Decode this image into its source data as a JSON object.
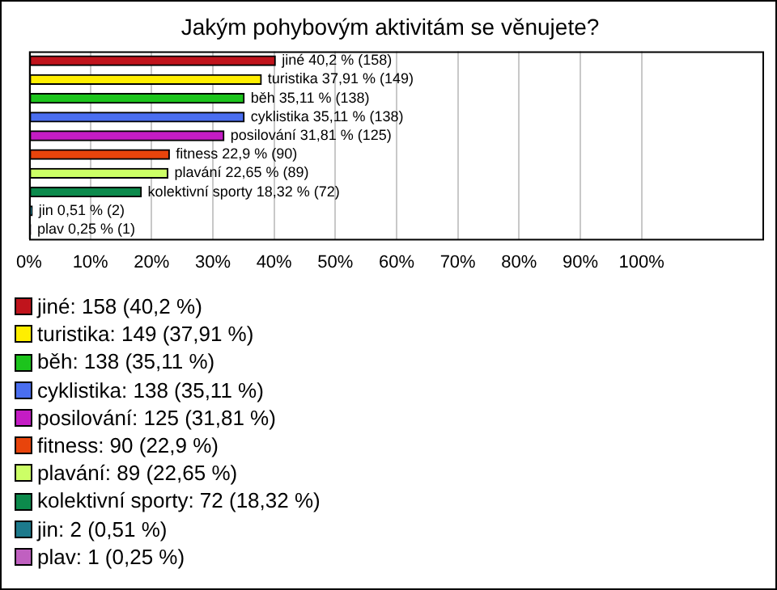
{
  "chart_data": {
    "type": "bar",
    "orientation": "horizontal",
    "title": "Jakým pohybovým aktivitám se věnujete?",
    "categories": [
      null,
      null,
      null,
      null,
      null,
      null,
      null,
      null,
      null,
      null
    ],
    "values": [
      40.2,
      37.91,
      35.11,
      35.11,
      31.81,
      22.9,
      22.65,
      18.32,
      0.51,
      0.25
    ],
    "colors": [
      "#c0141c",
      "#ffee00",
      "#1cc41c",
      "#4a6ef0",
      "#c41cc4",
      "#e8440c",
      "#ccff66",
      "#0c8a4c",
      "#1c7a8c",
      "#c060c0"
    ],
    "value_labels": [
      "jiné 40,2 % (158)",
      "turistika 37,91 % (149)",
      "běh 35,11 % (138)",
      "cyklistika 35,11 % (138)",
      "posilování 31,81 % (125)",
      "fitness 22,9 % (90)",
      "plavání 22,65 % (89)",
      "kolektivní sporty 18,32 % (72)",
      "jin 0,51 % (2)",
      "plav 0,25 % (1)"
    ],
    "xlim": [
      0,
      120
    ],
    "xticks": [
      {
        "value": 0,
        "label": "0%"
      },
      {
        "value": 10,
        "label": "10%"
      },
      {
        "value": 20,
        "label": "20%"
      },
      {
        "value": 30,
        "label": "30%"
      },
      {
        "value": 40,
        "label": "40%"
      },
      {
        "value": 50,
        "label": "50%"
      },
      {
        "value": 60,
        "label": "60%"
      },
      {
        "value": 70,
        "label": "70%"
      },
      {
        "value": 80,
        "label": "80%"
      },
      {
        "value": 90,
        "label": "90%"
      },
      {
        "value": 100,
        "label": "100%"
      }
    ],
    "grid": "x",
    "tick_labels": "x",
    "annotations": [
      "jiné: 158 (40,2 %)",
      "turistika: 149 (37,91 %)",
      "běh: 138 (35,11 %)",
      "cyklistika: 138 (35,11 %)",
      "posilování: 125 (31,81 %)",
      "fitness: 90 (22,9 %)",
      "plavání: 89 (22,65 %)",
      "kolektivní sporty: 72 (18,32 %)",
      "jin: 2 (0,51 %)",
      "plav: 1 (0,25 %)"
    ]
  }
}
